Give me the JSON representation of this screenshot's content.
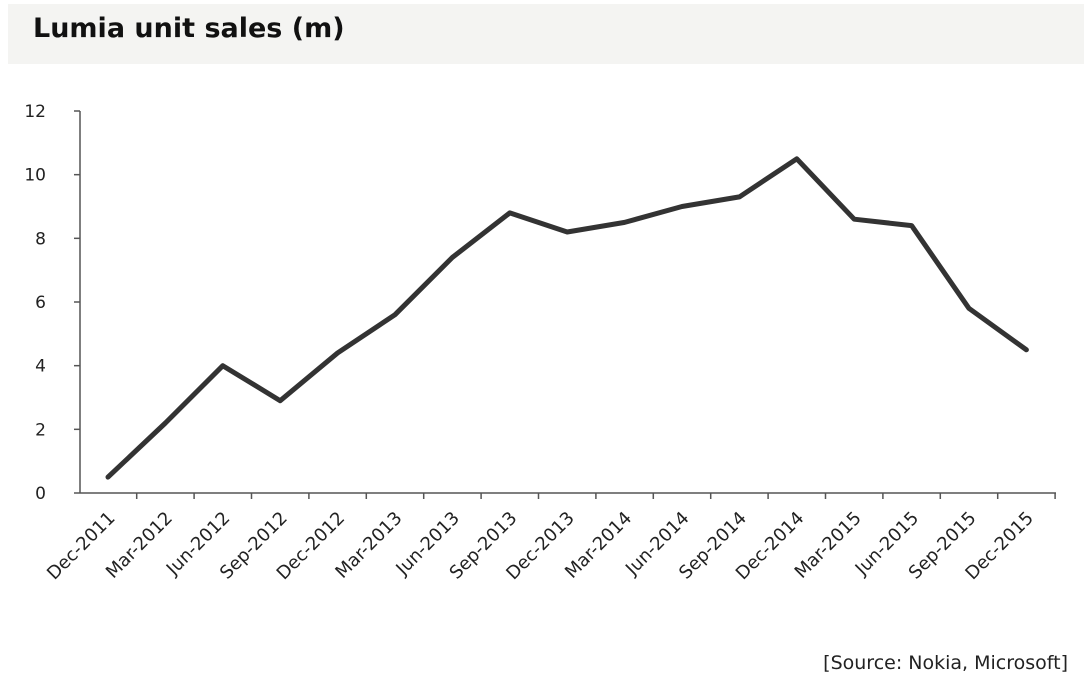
{
  "title": "Lumia unit sales (m)",
  "source": "[Source: Nokia, Microsoft]",
  "colors": {
    "line": "#333333",
    "axis": "#555555",
    "title_band": "#f4f4f2"
  },
  "chart_data": {
    "type": "line",
    "title": "Lumia unit sales (m)",
    "xlabel": "",
    "ylabel": "",
    "categories": [
      "Dec-2011",
      "Mar-2012",
      "Jun-2012",
      "Sep-2012",
      "Dec-2012",
      "Mar-2013",
      "Jun-2013",
      "Sep-2013",
      "Dec-2013",
      "Mar-2014",
      "Jun-2014",
      "Sep-2014",
      "Dec-2014",
      "Mar-2015",
      "Jun-2015",
      "Sep-2015",
      "Dec-2015"
    ],
    "series": [
      {
        "values": [
          0.5,
          2.2,
          4.0,
          2.9,
          4.4,
          5.6,
          7.4,
          8.8,
          8.2,
          8.5,
          9.0,
          9.3,
          10.5,
          8.6,
          8.4,
          5.8,
          4.5
        ]
      }
    ],
    "ylim": [
      0,
      12
    ],
    "yticks": [
      0,
      2,
      4,
      6,
      8,
      10,
      12
    ],
    "grid": false,
    "legend": "none"
  }
}
